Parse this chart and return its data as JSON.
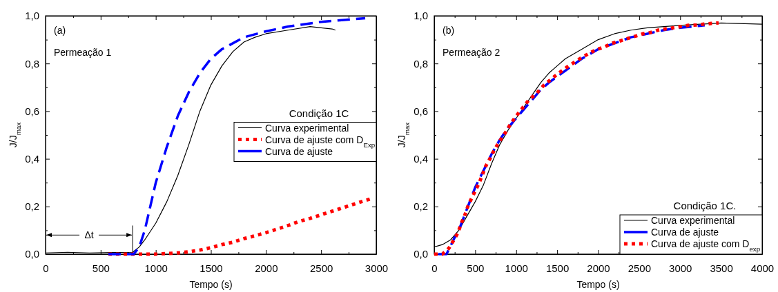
{
  "chart_data": [
    {
      "type": "line",
      "legend_title": "Condição 1C",
      "xlabel": "Tempo (s)",
      "ylabel": "J/J$_{max}$",
      "legend": "right",
      "annotations": [
        "(a)",
        "Permeação 1",
        {
          "text": "Δt",
          "x": 790,
          "y": 0.08
        }
      ],
      "ref_lines": [
        {
          "axis": "x",
          "value": 790,
          "color": "#000000"
        }
      ],
      "xlim": [
        0,
        3000
      ],
      "ylim": [
        0,
        1
      ],
      "xticks": [
        {
          "value": 0,
          "label": "0"
        },
        {
          "value": 250,
          "label": null
        },
        {
          "value": 500,
          "label": "500"
        },
        {
          "value": 750,
          "label": null
        },
        {
          "value": 1000,
          "label": "1000"
        },
        {
          "value": 1250,
          "label": null
        },
        {
          "value": 1500,
          "label": "1500"
        },
        {
          "value": 1750,
          "label": null
        },
        {
          "value": 2000,
          "label": "2000"
        },
        {
          "value": 2250,
          "label": null
        },
        {
          "value": 2500,
          "label": "2500"
        },
        {
          "value": 2750,
          "label": null
        },
        {
          "value": 3000,
          "label": "3000"
        }
      ],
      "yticks": [
        {
          "value": 0,
          "label": "0,0"
        },
        {
          "value": 0.1,
          "label": null
        },
        {
          "value": 0.2,
          "label": "0,2"
        },
        {
          "value": 0.3,
          "label": null
        },
        {
          "value": 0.4,
          "label": "0,4"
        },
        {
          "value": 0.5,
          "label": null
        },
        {
          "value": 0.6,
          "label": "0,6"
        },
        {
          "value": 0.7,
          "label": null
        },
        {
          "value": 0.8,
          "label": "0,8"
        },
        {
          "value": 0.9,
          "label": null
        },
        {
          "value": 1,
          "label": "1,0"
        }
      ],
      "series": [
        {
          "name": "Curva experimental",
          "color": "#000000",
          "line_style": "solid",
          "x": [
            0,
            200,
            400,
            600,
            790,
            850,
            900,
            1000,
            1100,
            1200,
            1300,
            1400,
            1500,
            1600,
            1700,
            1800,
            1900,
            2000,
            2200,
            2400,
            2600,
            2630
          ],
          "values": [
            0.005,
            0.008,
            0.005,
            0.007,
            0.008,
            0.03,
            0.06,
            0.13,
            0.22,
            0.33,
            0.46,
            0.6,
            0.71,
            0.79,
            0.85,
            0.89,
            0.91,
            0.925,
            0.94,
            0.955,
            0.945,
            0.94
          ]
        },
        {
          "name": "Curva de ajuste com D$_{Exp}$",
          "color": "#ff0000",
          "line_style": "dotted",
          "x": [
            570,
            1000,
            1200,
            1300,
            1400,
            1500,
            1600,
            1700,
            1800,
            1900,
            2000,
            2100,
            2200,
            2300,
            2400,
            2500,
            2600,
            2700,
            2800,
            2900,
            2970
          ],
          "values": [
            0,
            0,
            0.005,
            0.01,
            0.017,
            0.027,
            0.04,
            0.05,
            0.065,
            0.077,
            0.09,
            0.105,
            0.12,
            0.137,
            0.15,
            0.165,
            0.18,
            0.195,
            0.21,
            0.225,
            0.235
          ]
        },
        {
          "name": "Curva de ajuste",
          "color": "#0000ff",
          "line_style": "dashed",
          "x": [
            570,
            800,
            850,
            900,
            1000,
            1100,
            1200,
            1300,
            1400,
            1500,
            1600,
            1800,
            2000,
            2200,
            2500,
            2900
          ],
          "values": [
            0,
            0,
            0.03,
            0.1,
            0.3,
            0.45,
            0.58,
            0.68,
            0.76,
            0.82,
            0.86,
            0.91,
            0.935,
            0.955,
            0.975,
            0.99
          ]
        }
      ]
    },
    {
      "type": "line",
      "legend_title": "Condição 1C.",
      "xlabel": "Tempo (s)",
      "ylabel": "J/J$_{max}$",
      "legend": "bottom right",
      "annotations": [
        "(b)",
        "Permeação 2"
      ],
      "xlim": [
        0,
        4000
      ],
      "ylim": [
        0,
        1
      ],
      "xticks": [
        {
          "value": 0,
          "label": "0"
        },
        {
          "value": 250,
          "label": null
        },
        {
          "value": 500,
          "label": "500"
        },
        {
          "value": 750,
          "label": null
        },
        {
          "value": 1000,
          "label": "1000"
        },
        {
          "value": 1250,
          "label": null
        },
        {
          "value": 1500,
          "label": "1500"
        },
        {
          "value": 1750,
          "label": null
        },
        {
          "value": 2000,
          "label": "2000"
        },
        {
          "value": 2250,
          "label": null
        },
        {
          "value": 2500,
          "label": "2500"
        },
        {
          "value": 2750,
          "label": null
        },
        {
          "value": 3000,
          "label": "3000"
        },
        {
          "value": 3250,
          "label": null
        },
        {
          "value": 3500,
          "label": "3500"
        },
        {
          "value": 3750,
          "label": null
        },
        {
          "value": 4000,
          "label": "4000"
        }
      ],
      "yticks": [
        {
          "value": 0,
          "label": "0,0"
        },
        {
          "value": 0.1,
          "label": null
        },
        {
          "value": 0.2,
          "label": "0,2"
        },
        {
          "value": 0.3,
          "label": null
        },
        {
          "value": 0.4,
          "label": "0,4"
        },
        {
          "value": 0.5,
          "label": null
        },
        {
          "value": 0.6,
          "label": "0,6"
        },
        {
          "value": 0.7,
          "label": null
        },
        {
          "value": 0.8,
          "label": "0,8"
        },
        {
          "value": 0.9,
          "label": null
        },
        {
          "value": 1,
          "label": "1,0"
        }
      ],
      "series": [
        {
          "name": "Curva experimental",
          "color": "#000000",
          "line_style": "solid",
          "x": [
            0,
            100,
            200,
            300,
            400,
            500,
            600,
            700,
            800,
            900,
            1000,
            1100,
            1200,
            1300,
            1400,
            1500,
            1600,
            1800,
            2000,
            2200,
            2400,
            2600,
            2800,
            3000,
            3500,
            4000
          ],
          "values": [
            0.03,
            0.04,
            0.06,
            0.1,
            0.16,
            0.22,
            0.29,
            0.38,
            0.46,
            0.52,
            0.57,
            0.62,
            0.67,
            0.72,
            0.76,
            0.79,
            0.82,
            0.86,
            0.9,
            0.925,
            0.94,
            0.95,
            0.955,
            0.96,
            0.97,
            0.965
          ]
        },
        {
          "name": "Curva de ajuste",
          "color": "#0000ff",
          "line_style": "dashed",
          "x": [
            50,
            150,
            250,
            300,
            400,
            500,
            600,
            700,
            800,
            900,
            1000,
            1100,
            1200,
            1300,
            1400,
            1600,
            1800,
            2000,
            2200,
            2400,
            2600,
            2800,
            3000,
            3300
          ],
          "values": [
            0,
            0,
            0.07,
            0.1,
            0.19,
            0.28,
            0.35,
            0.42,
            0.48,
            0.53,
            0.57,
            0.61,
            0.65,
            0.69,
            0.72,
            0.77,
            0.82,
            0.86,
            0.885,
            0.91,
            0.925,
            0.94,
            0.95,
            0.96
          ]
        },
        {
          "name": "Curva de ajuste com D$_{exp}$",
          "color": "#ff0000",
          "line_style": "dotted",
          "x": [
            0,
            100,
            180,
            240,
            290,
            330,
            370,
            410,
            450,
            500,
            550,
            590,
            630,
            680,
            730,
            790,
            860,
            920,
            990,
            1070,
            1150,
            1250,
            1340,
            1430,
            1520,
            1620,
            1710,
            1800,
            1900,
            1990,
            2080,
            2170,
            2270,
            2360,
            2460,
            2550,
            2640,
            2730,
            2820,
            2920,
            3010,
            3100,
            3200,
            3290,
            3380,
            3470
          ],
          "values": [
            0,
            0,
            0.025,
            0.06,
            0.09,
            0.13,
            0.16,
            0.2,
            0.23,
            0.265,
            0.3,
            0.335,
            0.37,
            0.4,
            0.435,
            0.47,
            0.505,
            0.54,
            0.575,
            0.61,
            0.645,
            0.675,
            0.71,
            0.735,
            0.76,
            0.785,
            0.805,
            0.825,
            0.845,
            0.86,
            0.87,
            0.885,
            0.895,
            0.905,
            0.915,
            0.925,
            0.93,
            0.94,
            0.945,
            0.95,
            0.955,
            0.96,
            0.962,
            0.965,
            0.968,
            0.97
          ]
        }
      ]
    }
  ]
}
